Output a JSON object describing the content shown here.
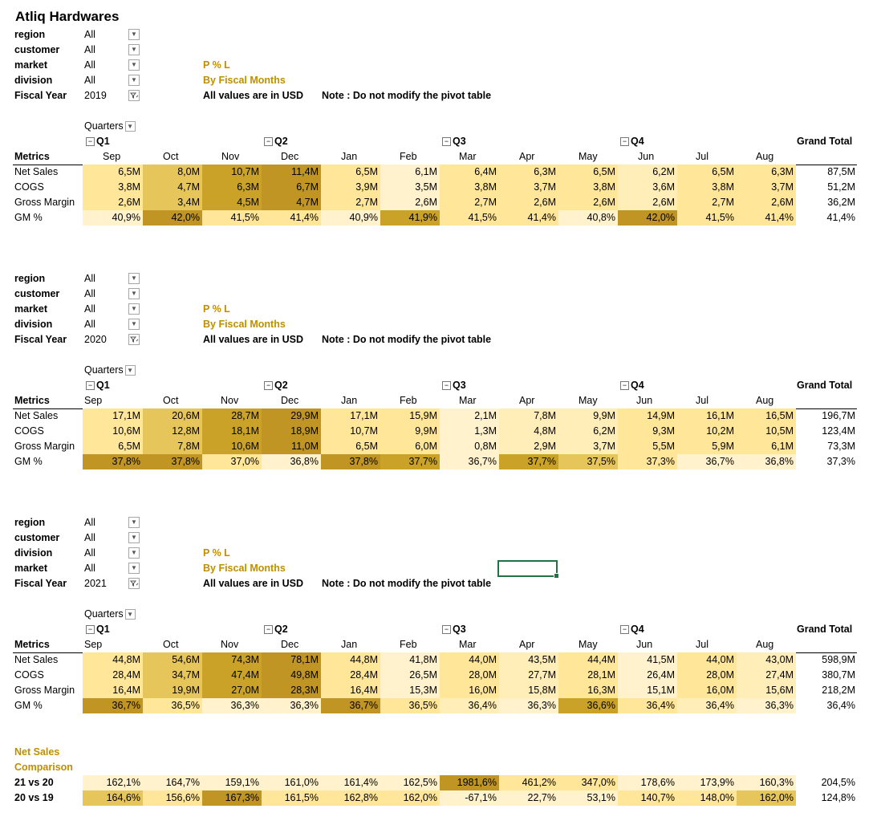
{
  "title": "Atliq Hardwares",
  "labels": {
    "quarters": "Quarters",
    "metrics": "Metrics",
    "grand_total": "Grand Total",
    "pl": "P % L",
    "by_fiscal": "By Fiscal Months",
    "usd": "All values are in USD",
    "note": "Note : Do not modify the pivot table",
    "q1": "Q1",
    "q2": "Q2",
    "q3": "Q3",
    "q4": "Q4",
    "net_sales_comparison_1": "Net Sales",
    "net_sales_comparison_2": "Comparison"
  },
  "months": [
    "Sep",
    "Oct",
    "Nov",
    "Dec",
    "Jan",
    "Feb",
    "Mar",
    "Apr",
    "May",
    "Jun",
    "Jul",
    "Aug"
  ],
  "row_labels": [
    "Net Sales",
    "COGS",
    "Gross Margin",
    "GM %"
  ],
  "blocks": [
    {
      "filters": [
        {
          "label": "region",
          "value": "All",
          "icon": "dropdown-icon"
        },
        {
          "label": "customer",
          "value": "All",
          "icon": "dropdown-icon"
        },
        {
          "label": "market",
          "value": "All",
          "icon": "dropdown-icon"
        },
        {
          "label": "division",
          "value": "All",
          "icon": "dropdown-icon"
        },
        {
          "label": "Fiscal Year",
          "value": "2019",
          "icon": "filter-icon"
        }
      ],
      "rows": [
        {
          "label": "Net Sales",
          "values": [
            "6,5M",
            "8,0M",
            "10,7M",
            "11,4M",
            "6,5M",
            "6,1M",
            "6,4M",
            "6,3M",
            "6,5M",
            "6,2M",
            "6,5M",
            "6,3M"
          ],
          "total": "87,5M",
          "colors": [
            "#ffe699",
            "#e6c55a",
            "#c9a227",
            "#c09524",
            "#ffe699",
            "#fff2cc",
            "#ffe699",
            "#ffe699",
            "#ffe699",
            "#ffeeb8",
            "#ffe699",
            "#ffe699"
          ]
        },
        {
          "label": "COGS",
          "values": [
            "3,8M",
            "4,7M",
            "6,3M",
            "6,7M",
            "3,9M",
            "3,5M",
            "3,8M",
            "3,7M",
            "3,8M",
            "3,6M",
            "3,8M",
            "3,7M"
          ],
          "total": "51,2M",
          "colors": [
            "#ffe699",
            "#e6c55a",
            "#c9a227",
            "#c09524",
            "#ffe699",
            "#fff2cc",
            "#ffe699",
            "#ffe699",
            "#ffe699",
            "#ffeeb8",
            "#ffe699",
            "#ffe699"
          ]
        },
        {
          "label": "Gross Margin",
          "values": [
            "2,6M",
            "3,4M",
            "4,5M",
            "4,7M",
            "2,7M",
            "2,6M",
            "2,7M",
            "2,6M",
            "2,6M",
            "2,6M",
            "2,7M",
            "2,6M"
          ],
          "total": "36,2M",
          "colors": [
            "#ffe699",
            "#e6c55a",
            "#c9a227",
            "#c09524",
            "#ffe699",
            "#fff2cc",
            "#ffe699",
            "#ffe699",
            "#ffe699",
            "#ffeeb8",
            "#ffe699",
            "#ffe699"
          ]
        },
        {
          "label": "GM %",
          "values": [
            "40,9%",
            "42,0%",
            "41,5%",
            "41,4%",
            "40,9%",
            "41,9%",
            "41,5%",
            "41,4%",
            "40,8%",
            "42,0%",
            "41,5%",
            "41,4%"
          ],
          "total": "41,4%",
          "colors": [
            "#fff2cc",
            "#c09524",
            "#ffe699",
            "#ffe699",
            "#fff2cc",
            "#c9a227",
            "#ffe699",
            "#ffe699",
            "#fff2cc",
            "#c09524",
            "#ffe699",
            "#ffe699"
          ]
        }
      ]
    },
    {
      "filters": [
        {
          "label": "region",
          "value": "All",
          "icon": "dropdown-icon"
        },
        {
          "label": "customer",
          "value": "All",
          "icon": "dropdown-icon"
        },
        {
          "label": "market",
          "value": "All",
          "icon": "dropdown-icon"
        },
        {
          "label": "division",
          "value": "All",
          "icon": "dropdown-icon"
        },
        {
          "label": "Fiscal Year",
          "value": "2020",
          "icon": "filter-icon"
        }
      ],
      "rows": [
        {
          "label": "Net Sales",
          "values": [
            "17,1M",
            "20,6M",
            "28,7M",
            "29,9M",
            "17,1M",
            "15,9M",
            "2,1M",
            "7,8M",
            "9,9M",
            "14,9M",
            "16,1M",
            "16,5M"
          ],
          "total": "196,7M",
          "colors": [
            "#ffe699",
            "#e6c55a",
            "#c9a227",
            "#c09524",
            "#ffe699",
            "#ffe699",
            "#fff2cc",
            "#ffeeb8",
            "#ffeeb8",
            "#ffe699",
            "#ffe699",
            "#ffe699"
          ]
        },
        {
          "label": "COGS",
          "values": [
            "10,6M",
            "12,8M",
            "18,1M",
            "18,9M",
            "10,7M",
            "9,9M",
            "1,3M",
            "4,8M",
            "6,2M",
            "9,3M",
            "10,2M",
            "10,5M"
          ],
          "total": "123,4M",
          "colors": [
            "#ffe699",
            "#e6c55a",
            "#c9a227",
            "#c09524",
            "#ffe699",
            "#ffe699",
            "#fff2cc",
            "#ffeeb8",
            "#ffeeb8",
            "#ffe699",
            "#ffe699",
            "#ffe699"
          ]
        },
        {
          "label": "Gross Margin",
          "values": [
            "6,5M",
            "7,8M",
            "10,6M",
            "11,0M",
            "6,5M",
            "6,0M",
            "0,8M",
            "2,9M",
            "3,7M",
            "5,5M",
            "5,9M",
            "6,1M"
          ],
          "total": "73,3M",
          "colors": [
            "#ffe699",
            "#e6c55a",
            "#c9a227",
            "#c09524",
            "#ffe699",
            "#ffe699",
            "#fff2cc",
            "#ffeeb8",
            "#ffeeb8",
            "#ffe699",
            "#ffe699",
            "#ffe699"
          ]
        },
        {
          "label": "GM %",
          "values": [
            "37,8%",
            "37,8%",
            "37,0%",
            "36,8%",
            "37,8%",
            "37,7%",
            "36,7%",
            "37,7%",
            "37,5%",
            "37,3%",
            "36,7%",
            "36,8%"
          ],
          "total": "37,3%",
          "colors": [
            "#c09524",
            "#c09524",
            "#ffe699",
            "#fff2cc",
            "#c09524",
            "#c9a227",
            "#fff2cc",
            "#c9a227",
            "#e6c55a",
            "#ffe699",
            "#fff2cc",
            "#fff2cc"
          ]
        }
      ]
    },
    {
      "filters": [
        {
          "label": "region",
          "value": "All",
          "icon": "dropdown-icon"
        },
        {
          "label": "customer",
          "value": "All",
          "icon": "dropdown-icon"
        },
        {
          "label": "division",
          "value": "All",
          "icon": "dropdown-icon"
        },
        {
          "label": "market",
          "value": "All",
          "icon": "dropdown-icon"
        },
        {
          "label": "Fiscal Year",
          "value": "2021",
          "icon": "filter-icon"
        }
      ],
      "rows": [
        {
          "label": "Net Sales",
          "values": [
            "44,8M",
            "54,6M",
            "74,3M",
            "78,1M",
            "44,8M",
            "41,8M",
            "44,0M",
            "43,5M",
            "44,4M",
            "41,5M",
            "44,0M",
            "43,0M"
          ],
          "total": "598,9M",
          "colors": [
            "#ffe699",
            "#e6c55a",
            "#c9a227",
            "#c09524",
            "#ffe699",
            "#fff2cc",
            "#ffe699",
            "#ffeeb8",
            "#ffe699",
            "#fff2cc",
            "#ffe699",
            "#ffeeb8"
          ]
        },
        {
          "label": "COGS",
          "values": [
            "28,4M",
            "34,7M",
            "47,4M",
            "49,8M",
            "28,4M",
            "26,5M",
            "28,0M",
            "27,7M",
            "28,1M",
            "26,4M",
            "28,0M",
            "27,4M"
          ],
          "total": "380,7M",
          "colors": [
            "#ffe699",
            "#e6c55a",
            "#c9a227",
            "#c09524",
            "#ffe699",
            "#fff2cc",
            "#ffe699",
            "#ffeeb8",
            "#ffe699",
            "#fff2cc",
            "#ffe699",
            "#ffeeb8"
          ]
        },
        {
          "label": "Gross Margin",
          "values": [
            "16,4M",
            "19,9M",
            "27,0M",
            "28,3M",
            "16,4M",
            "15,3M",
            "16,0M",
            "15,8M",
            "16,3M",
            "15,1M",
            "16,0M",
            "15,6M"
          ],
          "total": "218,2M",
          "colors": [
            "#ffe699",
            "#e6c55a",
            "#c9a227",
            "#c09524",
            "#ffe699",
            "#fff2cc",
            "#ffe699",
            "#ffeeb8",
            "#ffe699",
            "#fff2cc",
            "#ffe699",
            "#ffeeb8"
          ]
        },
        {
          "label": "GM %",
          "values": [
            "36,7%",
            "36,5%",
            "36,3%",
            "36,3%",
            "36,7%",
            "36,5%",
            "36,4%",
            "36,3%",
            "36,6%",
            "36,4%",
            "36,4%",
            "36,3%"
          ],
          "total": "36,4%",
          "colors": [
            "#c09524",
            "#ffe699",
            "#fff2cc",
            "#fff2cc",
            "#c09524",
            "#ffe699",
            "#ffeeb8",
            "#fff2cc",
            "#c9a227",
            "#ffe699",
            "#ffeeb8",
            "#fff2cc"
          ]
        }
      ]
    }
  ],
  "comparison": [
    {
      "label": "21 vs 20",
      "values": [
        "162,1%",
        "164,7%",
        "159,1%",
        "161,0%",
        "161,4%",
        "162,5%",
        "1981,6%",
        "461,2%",
        "347,0%",
        "178,6%",
        "173,9%",
        "160,3%"
      ],
      "total": "204,5%",
      "colors": [
        "#fff2cc",
        "#fff2cc",
        "#fff2cc",
        "#fff2cc",
        "#fff2cc",
        "#fff2cc",
        "#c09524",
        "#ffe699",
        "#ffe699",
        "#fff2cc",
        "#fff2cc",
        "#fff2cc"
      ]
    },
    {
      "label": "20 vs 19",
      "values": [
        "164,6%",
        "156,6%",
        "167,3%",
        "161,5%",
        "162,8%",
        "162,0%",
        "-67,1%",
        "22,7%",
        "53,1%",
        "140,7%",
        "148,0%",
        "162,0%"
      ],
      "total": "124,8%",
      "colors": [
        "#e6c55a",
        "#ffe699",
        "#c09524",
        "#ffe699",
        "#ffe699",
        "#ffe699",
        "#fff2cc",
        "#fff2cc",
        "#fff2cc",
        "#ffe699",
        "#ffe699",
        "#e6c55a"
      ]
    }
  ]
}
